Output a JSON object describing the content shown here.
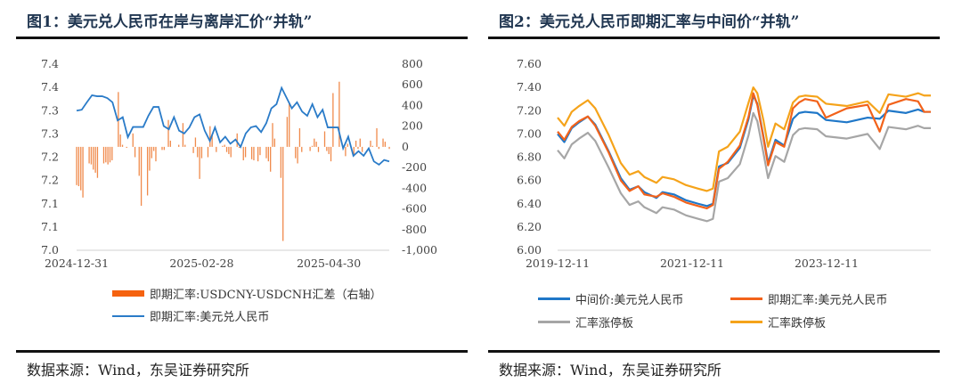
{
  "figures": [
    {
      "title": "图1：美元兑人民币在岸与离岸汇价“并轨”",
      "source": "数据来源：Wind，东吴证券研究所",
      "legend": [
        "即期汇率:USDCNY-USDCNH汇差（右轴）",
        "即期汇率:美元兑人民币"
      ]
    },
    {
      "title": "图2：美元兑人民币即期汇率与中间价“并轨”",
      "source": "数据来源：Wind，东吴证券研究所",
      "legend": [
        "中间价:美元兑人民币",
        "即期汇率:美元兑人民币",
        "汇率涨停板",
        "汇率跌停板"
      ]
    }
  ],
  "chart_data": [
    {
      "type": "bar+line",
      "grid": false,
      "legend_position": "bottom",
      "x_tick_labels": [
        "2024-12-31",
        "2025-02-28",
        "2025-04-30"
      ],
      "x_tick_index": [
        0,
        60,
        121
      ],
      "x_range_index": [
        0,
        150
      ],
      "y_left": {
        "range": [
          7.0,
          7.4
        ],
        "tick_labels": [
          "7.4",
          "7.4",
          "7.3",
          "7.3",
          "7.2",
          "7.2",
          "7.1",
          "7.1",
          "7.0"
        ]
      },
      "y_right": {
        "range": [
          -1000,
          800
        ],
        "tick_labels": [
          "800",
          "600",
          "400",
          "200",
          "0",
          "-200",
          "-400",
          "-600",
          "-800",
          "-1,000"
        ]
      },
      "bars": {
        "name": "即期汇率:USDCNY-USDCNH汇差（右轴）",
        "color": "#f08a4b",
        "points": [
          [
            0,
            -370
          ],
          [
            1,
            -380
          ],
          [
            2,
            -420
          ],
          [
            3,
            -490
          ],
          [
            6,
            -160
          ],
          [
            7,
            -170
          ],
          [
            8,
            -220
          ],
          [
            9,
            -250
          ],
          [
            10,
            -300
          ],
          [
            13,
            -160
          ],
          [
            14,
            -150
          ],
          [
            15,
            -170
          ],
          [
            16,
            -150
          ],
          [
            17,
            -130
          ],
          [
            20,
            530
          ],
          [
            21,
            120
          ],
          [
            22,
            20
          ],
          [
            24,
            -10
          ],
          [
            27,
            130
          ],
          [
            28,
            -100
          ],
          [
            30,
            -280
          ],
          [
            31,
            -570
          ],
          [
            34,
            -470
          ],
          [
            35,
            -230
          ],
          [
            36,
            -110
          ],
          [
            37,
            -40
          ],
          [
            38,
            -140
          ],
          [
            41,
            -30
          ],
          [
            42,
            -30
          ],
          [
            44,
            260
          ],
          [
            45,
            60
          ],
          [
            49,
            20
          ],
          [
            51,
            230
          ],
          [
            52,
            20
          ],
          [
            56,
            -60
          ],
          [
            57,
            90
          ],
          [
            58,
            -100
          ],
          [
            59,
            -310
          ],
          [
            60,
            -110
          ],
          [
            63,
            -100
          ],
          [
            64,
            200
          ],
          [
            65,
            110
          ],
          [
            67,
            -50
          ],
          [
            70,
            10
          ],
          [
            71,
            20
          ],
          [
            72,
            -50
          ],
          [
            73,
            -70
          ],
          [
            74,
            -100
          ],
          [
            77,
            130
          ],
          [
            78,
            -10
          ],
          [
            80,
            -130
          ],
          [
            81,
            -100
          ],
          [
            84,
            -120
          ],
          [
            85,
            -130
          ],
          [
            87,
            -140
          ],
          [
            88,
            -80
          ],
          [
            91,
            -110
          ],
          [
            92,
            -140
          ],
          [
            93,
            -240
          ],
          [
            94,
            230
          ],
          [
            95,
            80
          ],
          [
            98,
            -300
          ],
          [
            99,
            -910
          ],
          [
            101,
            290
          ],
          [
            102,
            430
          ],
          [
            105,
            -110
          ],
          [
            106,
            -160
          ],
          [
            107,
            180
          ],
          [
            108,
            -50
          ],
          [
            112,
            -40
          ],
          [
            113,
            10
          ],
          [
            114,
            80
          ],
          [
            115,
            50
          ],
          [
            116,
            -50
          ],
          [
            119,
            150
          ],
          [
            120,
            -40
          ],
          [
            121,
            -70
          ],
          [
            122,
            -140
          ],
          [
            123,
            520
          ],
          [
            126,
            630
          ],
          [
            129,
            -90
          ],
          [
            130,
            30
          ],
          [
            133,
            -90
          ],
          [
            134,
            60
          ],
          [
            135,
            -20
          ],
          [
            136,
            80
          ],
          [
            137,
            -50
          ],
          [
            141,
            60
          ],
          [
            142,
            10
          ],
          [
            144,
            180
          ],
          [
            145,
            -20
          ],
          [
            147,
            80
          ],
          [
            148,
            50
          ],
          [
            150,
            -20
          ]
        ]
      },
      "line": {
        "name": "即期汇率:美元兑人民币",
        "color": "#2a7bc8",
        "values": [
          7.3,
          7.302,
          7.318,
          7.333,
          7.331,
          7.331,
          7.327,
          7.318,
          7.279,
          7.286,
          7.243,
          7.265,
          7.265,
          7.265,
          7.289,
          7.308,
          7.308,
          7.267,
          7.26,
          7.286,
          7.257,
          7.251,
          7.264,
          7.286,
          7.292,
          7.257,
          7.235,
          7.264,
          7.232,
          7.244,
          7.229,
          7.238,
          7.222,
          7.251,
          7.264,
          7.267,
          7.254,
          7.273,
          7.305,
          7.314,
          7.349,
          7.327,
          7.305,
          7.318,
          7.298,
          7.289,
          7.314,
          7.286,
          7.302,
          7.264,
          7.264,
          7.264,
          7.219,
          7.244,
          7.203,
          7.213,
          7.203,
          7.219,
          7.191,
          7.184,
          7.194,
          7.191
        ]
      }
    },
    {
      "type": "line",
      "grid": false,
      "legend_position": "bottom",
      "x_tick_labels": [
        "2019-12-11",
        "2021-12-11",
        "2023-12-11"
      ],
      "x_tick_year": [
        2019.95,
        2021.95,
        2023.95
      ],
      "x_range_year": [
        2019.95,
        2025.5
      ],
      "y_range": [
        6.0,
        7.6
      ],
      "y_tick_labels": [
        "7.60",
        "7.40",
        "7.20",
        "7.00",
        "6.80",
        "6.60",
        "6.40",
        "6.20",
        "6.00"
      ],
      "x": [
        2019.95,
        2020.05,
        2020.16,
        2020.27,
        2020.4,
        2020.51,
        2020.71,
        2020.89,
        2021.02,
        2021.15,
        2021.24,
        2021.42,
        2021.51,
        2021.68,
        2021.86,
        2022.04,
        2022.17,
        2022.26,
        2022.35,
        2022.48,
        2022.66,
        2022.79,
        2022.86,
        2022.92,
        2023.01,
        2023.08,
        2023.19,
        2023.32,
        2023.45,
        2023.54,
        2023.63,
        2023.81,
        2023.94,
        2024.25,
        2024.56,
        2024.74,
        2024.87,
        2025.13,
        2025.31,
        2025.4,
        2025.5
      ],
      "series": [
        {
          "name": "中间价:美元兑人民币",
          "color": "#1f77c8",
          "values": [
            7.0,
            6.93,
            7.05,
            7.1,
            7.15,
            7.08,
            6.85,
            6.62,
            6.52,
            6.55,
            6.5,
            6.45,
            6.5,
            6.48,
            6.43,
            6.4,
            6.38,
            6.4,
            6.72,
            6.75,
            6.88,
            7.13,
            7.33,
            7.26,
            6.98,
            6.75,
            6.95,
            6.9,
            7.13,
            7.18,
            7.19,
            7.18,
            7.12,
            7.1,
            7.14,
            7.13,
            7.2,
            7.18,
            7.21,
            7.19,
            7.19
          ]
        },
        {
          "name": "即期汇率:美元兑人民币",
          "color": "#f2621a",
          "values": [
            7.02,
            6.95,
            7.06,
            7.11,
            7.15,
            7.07,
            6.84,
            6.6,
            6.51,
            6.55,
            6.48,
            6.46,
            6.49,
            6.46,
            6.41,
            6.38,
            6.36,
            6.39,
            6.7,
            6.76,
            6.9,
            7.15,
            7.35,
            7.25,
            6.97,
            6.73,
            6.93,
            6.89,
            7.22,
            7.27,
            7.3,
            7.28,
            7.14,
            7.22,
            7.25,
            7.02,
            7.25,
            7.3,
            7.28,
            7.19,
            7.19
          ]
        },
        {
          "name": "汇率涨停板",
          "color": "#a6a6a6",
          "values": [
            6.86,
            6.79,
            6.91,
            6.96,
            7.01,
            6.94,
            6.71,
            6.49,
            6.39,
            6.42,
            6.37,
            6.32,
            6.37,
            6.35,
            6.3,
            6.27,
            6.25,
            6.27,
            6.59,
            6.62,
            6.74,
            6.99,
            7.18,
            7.11,
            6.84,
            6.62,
            6.81,
            6.76,
            6.99,
            7.04,
            7.05,
            7.04,
            6.98,
            6.96,
            7.0,
            6.87,
            7.06,
            7.04,
            7.07,
            7.05,
            7.05
          ]
        },
        {
          "name": "汇率跌停板",
          "color": "#f5a31a",
          "values": [
            7.14,
            7.07,
            7.19,
            7.24,
            7.29,
            7.22,
            6.99,
            6.75,
            6.65,
            6.68,
            6.63,
            6.58,
            6.63,
            6.61,
            6.56,
            6.53,
            6.51,
            6.53,
            6.85,
            6.89,
            7.02,
            7.27,
            7.4,
            7.35,
            7.12,
            6.89,
            7.09,
            7.04,
            7.27,
            7.32,
            7.33,
            7.32,
            7.26,
            7.24,
            7.28,
            7.18,
            7.34,
            7.32,
            7.35,
            7.33,
            7.33
          ]
        }
      ]
    }
  ]
}
